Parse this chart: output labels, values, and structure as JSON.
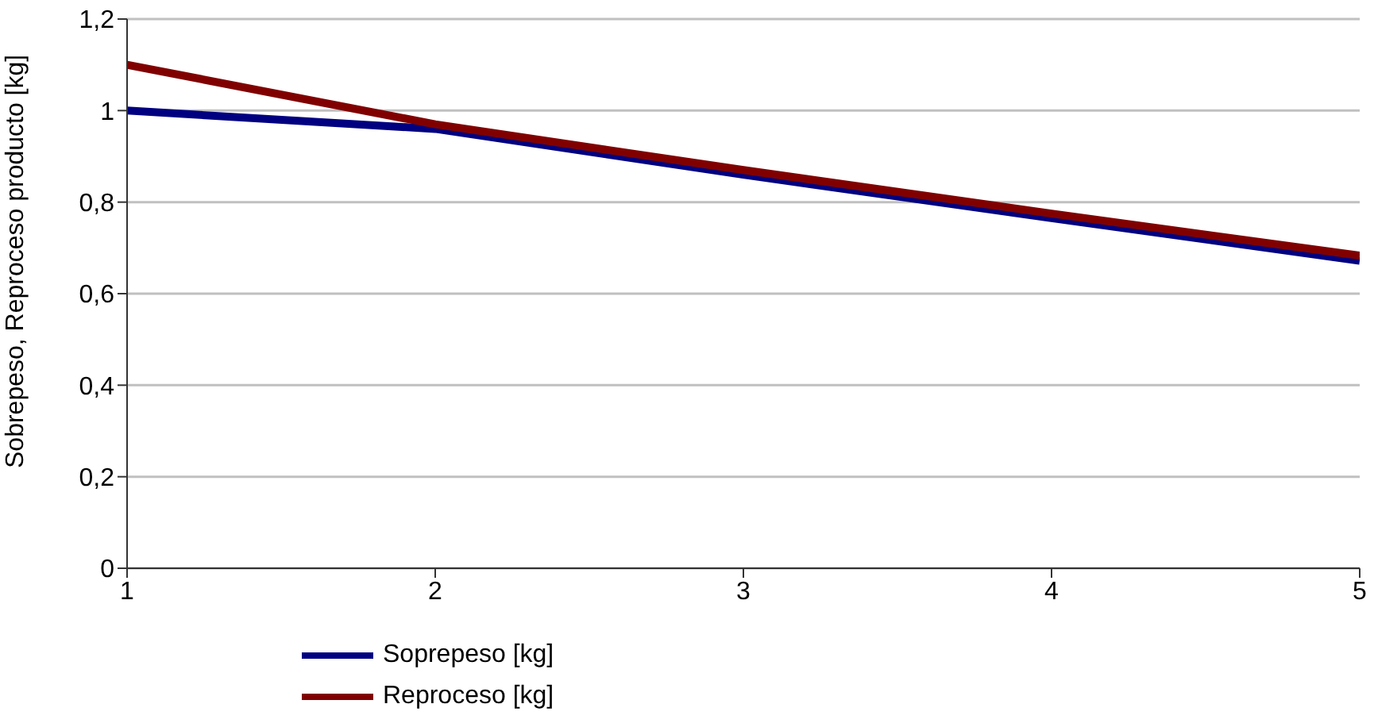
{
  "chart_data": {
    "type": "line",
    "ylabel": "Sobrepeso, Reproceso producto [kg]",
    "x": [
      1,
      2,
      3,
      4,
      5
    ],
    "series": [
      {
        "name": "Soprepeso [kg]",
        "color": "#000080",
        "values": [
          1.0,
          0.96,
          0.86,
          0.765,
          0.672
        ]
      },
      {
        "name": "Reproceso [kg]",
        "color": "#800000",
        "values": [
          1.1,
          0.97,
          0.87,
          0.775,
          0.683
        ]
      }
    ],
    "xlim": [
      1,
      5
    ],
    "xticks": [
      1,
      2,
      3,
      4,
      5
    ],
    "ylim": [
      0,
      1.2
    ],
    "yticks": [
      0,
      {
        "value": 0.2,
        "label": "0,2"
      },
      {
        "value": 0.4,
        "label": "0,4"
      },
      {
        "value": 0.6,
        "label": "0,6"
      },
      {
        "value": 0.8,
        "label": "0,8"
      },
      1,
      {
        "value": 1.2,
        "label": "1,2"
      }
    ],
    "grid": "y",
    "legend": "bottom",
    "marker": "none",
    "line_style": "solid"
  }
}
